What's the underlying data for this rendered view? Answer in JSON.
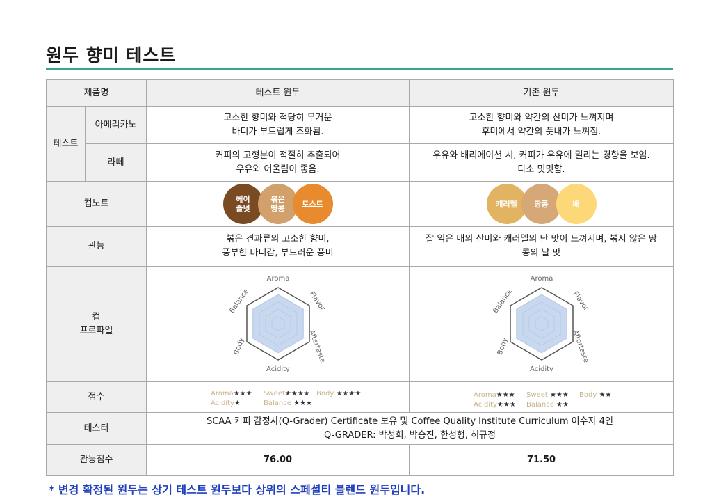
{
  "page": {
    "title": "원두 향미 테스트",
    "footnote": "* 변경 확정된 원두는 상기 테스트 원두보다 상위의 스페셜티 블렌드 원두입니다.",
    "accent_color": "#3aa58e",
    "footnote_color": "#1f3fbf"
  },
  "table": {
    "header": {
      "product": "제품명",
      "test_bean": "테스트 원두",
      "current_bean": "기존 원두"
    },
    "test_group": "테스트",
    "rows": {
      "americano": {
        "label": "아메리카노",
        "test": "고소한 향미와 적당히 무거운\n바디가 부드럽게 조화됨.",
        "current": "고소한 향미와 약간의 산미가 느껴지며\n후미에서 약간의 풋내가 느껴짐."
      },
      "latte": {
        "label": "라떼",
        "test": "커피의 고형분이 적절히 추출되어\n우유와 어울림이 좋음.",
        "current": "우유와 배리에이션 시, 커피가 우유에 밀리는 경향을 보임.\n다소 밋밋함."
      },
      "cup_note": {
        "label": "컵노트",
        "test": [
          {
            "text": "헤이\n즐넛",
            "color": "#7a4a22"
          },
          {
            "text": "볶은\n땅콩",
            "color": "#d2a06a"
          },
          {
            "text": "토스트",
            "color": "#e88a2e"
          }
        ],
        "current": [
          {
            "text": "캐러멜",
            "color": "#e2b462"
          },
          {
            "text": "땅콩",
            "color": "#d6a877"
          },
          {
            "text": "배",
            "color": "#fcd878"
          }
        ]
      },
      "sensory": {
        "label": "관능",
        "test": "볶은 견과류의 고소한 향미,\n풍부한 바디감, 부드러운 풍미",
        "current": "잘 익은 배의 산미와 캐러멜의 단 맛이 느껴지며, 볶지 않은 땅\n콩의 날 맛"
      },
      "cup_profile": {
        "label": "컵\n프로파일",
        "axes": [
          "Aroma",
          "Flavor",
          "Aftertaste",
          "Acidity",
          "Body",
          "Balance"
        ],
        "fill_color": "#c8d8ee",
        "test_values": [
          0.82,
          0.82,
          0.82,
          0.82,
          0.82,
          0.82
        ],
        "current_values": [
          0.82,
          0.82,
          0.82,
          0.82,
          0.82,
          0.82
        ]
      },
      "score": {
        "label": "점수",
        "test": {
          "aroma": {
            "k": "Aroma",
            "s": "★★★"
          },
          "sweet": {
            "k": "Sweet",
            "s": "★★★★"
          },
          "body": {
            "k": "Body",
            "s": "★★★★"
          },
          "acidity": {
            "k": "Acidity",
            "s": "★"
          },
          "balance": {
            "k": "Balance",
            "s": "★★★"
          }
        },
        "current": {
          "aroma": {
            "k": "Aroma",
            "s": "★★★"
          },
          "sweet": {
            "k": "Sweet",
            "s": "★★★"
          },
          "body": {
            "k": "Body",
            "s": "★★"
          },
          "acidity": {
            "k": "Acidity",
            "s": "★★★"
          },
          "balance": {
            "k": "Balance",
            "s": "★★"
          }
        }
      },
      "tester": {
        "label": "테스터",
        "line1": "SCAA 커피 감정사(Q-Grader) Certificate 보유 및 Coffee Quality Institute  Curriculum 이수자 4인",
        "line2": "Q-GRADER: 박성희, 박승진, 한성형, 허규정"
      },
      "sensory_score": {
        "label": "관능점수",
        "test": "76.00",
        "current": "71.50"
      }
    }
  }
}
